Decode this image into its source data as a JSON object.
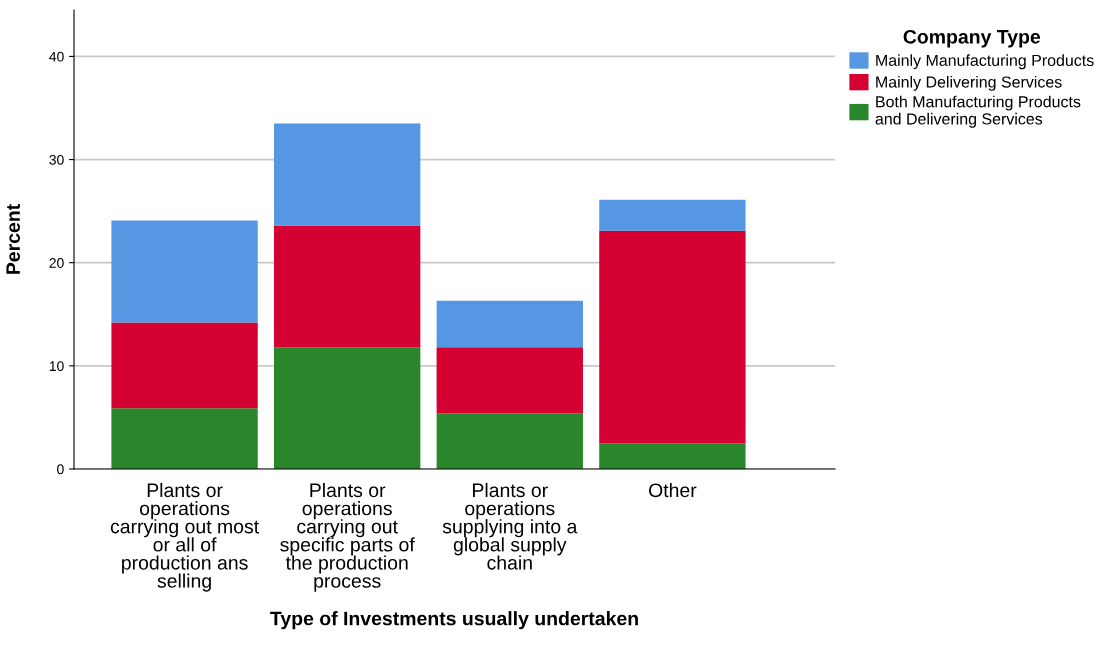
{
  "chart_data": {
    "type": "bar",
    "stacked": true,
    "xlabel": "Type of Investments usually undertaken",
    "ylabel": "Percent",
    "legend_title": "Company Type",
    "categories": [
      "Plants or\noperations\ncarrying out most\nor all of\nproduction ans\nselling",
      "Plants or\noperations\ncarrying out\nspecific parts of\nthe production\nprocess",
      "Plants or\noperations\nsupplying into a\nglobal supply\nchain",
      "Other"
    ],
    "series": [
      {
        "name": "Both Manufacturing Products\nand Delivering Services",
        "color": "#2a862a",
        "values": [
          5.9,
          11.8,
          5.4,
          2.5
        ]
      },
      {
        "name": "Mainly Delivering Services",
        "color": "#d50032",
        "values": [
          8.3,
          11.8,
          6.4,
          20.6
        ]
      },
      {
        "name": "Mainly Manufacturing Products",
        "color": "#5597e3",
        "values": [
          9.9,
          9.9,
          4.5,
          3.0
        ]
      }
    ],
    "ylim": [
      0,
      44.5
    ],
    "yticks": [
      0,
      10,
      20,
      30,
      40
    ],
    "grid": "y",
    "legend": "top right"
  }
}
